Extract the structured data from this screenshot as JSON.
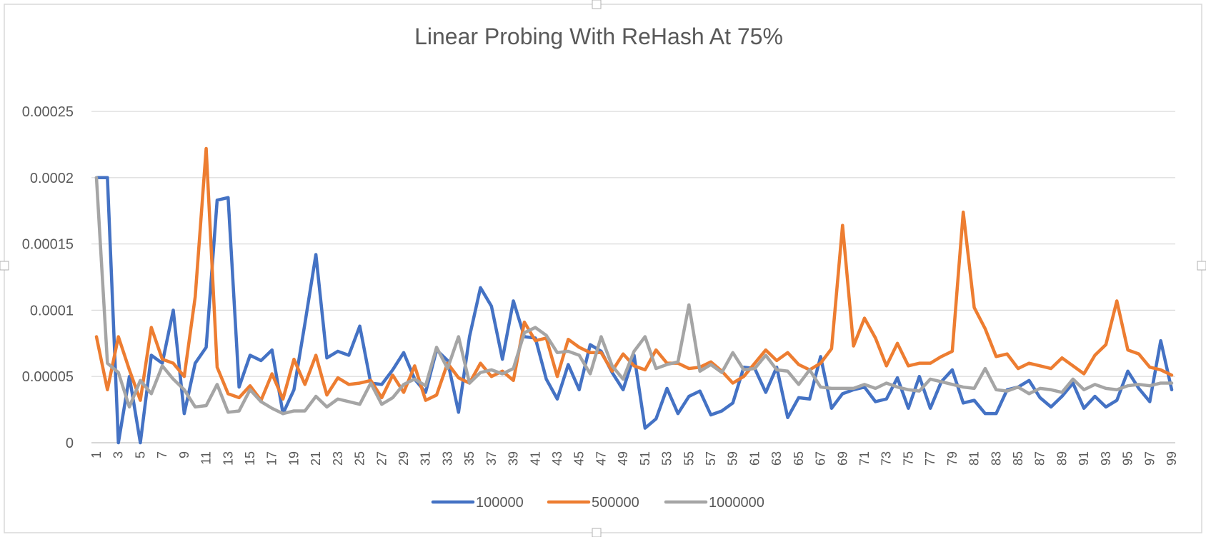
{
  "chart_data": {
    "type": "line",
    "title": "Linear Probing With ReHash At 75%",
    "xlabel": "",
    "ylabel": "",
    "x": [
      1,
      2,
      3,
      4,
      5,
      6,
      7,
      8,
      9,
      10,
      11,
      12,
      13,
      14,
      15,
      16,
      17,
      18,
      19,
      20,
      21,
      22,
      23,
      24,
      25,
      26,
      27,
      28,
      29,
      30,
      31,
      32,
      33,
      34,
      35,
      36,
      37,
      38,
      39,
      40,
      41,
      42,
      43,
      44,
      45,
      46,
      47,
      48,
      49,
      50,
      51,
      52,
      53,
      54,
      55,
      56,
      57,
      58,
      59,
      60,
      61,
      62,
      63,
      64,
      65,
      66,
      67,
      68,
      69,
      70,
      71,
      72,
      73,
      74,
      75,
      76,
      77,
      78,
      79,
      80,
      81,
      82,
      83,
      84,
      85,
      86,
      87,
      88,
      89,
      90,
      91,
      92,
      93,
      94,
      95,
      96,
      97,
      98,
      99
    ],
    "x_tick_labels": [
      "1",
      "3",
      "5",
      "7",
      "9",
      "11",
      "13",
      "15",
      "17",
      "19",
      "21",
      "23",
      "25",
      "27",
      "29",
      "31",
      "33",
      "35",
      "37",
      "39",
      "41",
      "43",
      "45",
      "47",
      "49",
      "51",
      "53",
      "55",
      "57",
      "59",
      "61",
      "63",
      "65",
      "67",
      "69",
      "71",
      "73",
      "75",
      "77",
      "79",
      "81",
      "83",
      "85",
      "87",
      "89",
      "91",
      "93",
      "95",
      "97",
      "99"
    ],
    "y_tick_labels": [
      "0",
      "0.00005",
      "0.0001",
      "0.00015",
      "0.0002",
      "0.00025"
    ],
    "ylim": [
      0,
      0.00025
    ],
    "grid": true,
    "legend_position": "bottom",
    "series": [
      {
        "name": "100000",
        "color": "#4472C4",
        "values": [
          0.0002,
          0.0002,
          0,
          5e-05,
          0,
          6.6e-05,
          6e-05,
          0.0001,
          2.2e-05,
          6e-05,
          7.2e-05,
          0.000183,
          0.000185,
          4.2e-05,
          6.6e-05,
          6.2e-05,
          7e-05,
          2.2e-05,
          4e-05,
          9e-05,
          0.000142,
          6.4e-05,
          6.9e-05,
          6.6e-05,
          8.8e-05,
          4.5e-05,
          4.4e-05,
          5.5e-05,
          6.8e-05,
          4.8e-05,
          3.8e-05,
          7e-05,
          6.2e-05,
          2.3e-05,
          8e-05,
          0.000117,
          0.000103,
          6.3e-05,
          0.000107,
          8e-05,
          7.9e-05,
          4.8e-05,
          3.3e-05,
          5.9e-05,
          4e-05,
          7.4e-05,
          6.9e-05,
          5.3e-05,
          4e-05,
          6.6e-05,
          1.1e-05,
          1.8e-05,
          4.1e-05,
          2.2e-05,
          3.5e-05,
          3.9e-05,
          2.1e-05,
          2.4e-05,
          3e-05,
          5.7e-05,
          5.6e-05,
          3.8e-05,
          5.7e-05,
          1.9e-05,
          3.4e-05,
          3.3e-05,
          6.5e-05,
          2.6e-05,
          3.7e-05,
          4e-05,
          4.2e-05,
          3.1e-05,
          3.3e-05,
          4.9e-05,
          2.6e-05,
          5e-05,
          2.6e-05,
          4.6e-05,
          5.5e-05,
          3e-05,
          3.2e-05,
          2.2e-05,
          2.2e-05,
          4e-05,
          4.2e-05,
          4.7e-05,
          3.4e-05,
          2.7e-05,
          3.5e-05,
          4.5e-05,
          2.6e-05,
          3.5e-05,
          2.7e-05,
          3.2e-05,
          5.4e-05,
          4.1e-05,
          3.1e-05,
          7.7e-05,
          4e-05
        ]
      },
      {
        "name": "500000",
        "color": "#ED7D31",
        "values": [
          8e-05,
          4e-05,
          8e-05,
          5.5e-05,
          3.2e-05,
          8.7e-05,
          6.3e-05,
          6e-05,
          5e-05,
          0.00011,
          0.000222,
          5.7e-05,
          3.7e-05,
          3.4e-05,
          4.3e-05,
          3.2e-05,
          5.2e-05,
          3.3e-05,
          6.3e-05,
          4.4e-05,
          6.6e-05,
          3.6e-05,
          4.9e-05,
          4.4e-05,
          4.5e-05,
          4.7e-05,
          3.4e-05,
          5.1e-05,
          3.8e-05,
          5.8e-05,
          3.2e-05,
          3.6e-05,
          6e-05,
          4.9e-05,
          4.5e-05,
          6e-05,
          5e-05,
          5.4e-05,
          4.7e-05,
          9.1e-05,
          7.7e-05,
          7.9e-05,
          5e-05,
          7.8e-05,
          7.2e-05,
          6.8e-05,
          6.8e-05,
          5.4e-05,
          6.7e-05,
          5.8e-05,
          5.5e-05,
          7e-05,
          6e-05,
          6e-05,
          5.6e-05,
          5.7e-05,
          6.1e-05,
          5.4e-05,
          4.5e-05,
          5e-05,
          6e-05,
          7e-05,
          6.2e-05,
          6.8e-05,
          5.9e-05,
          5.5e-05,
          6e-05,
          7.1e-05,
          0.000164,
          7.3e-05,
          9.4e-05,
          7.9e-05,
          5.8e-05,
          7.5e-05,
          5.8e-05,
          6e-05,
          6e-05,
          6.5e-05,
          6.9e-05,
          0.000174,
          0.000102,
          8.6e-05,
          6.5e-05,
          6.7e-05,
          5.6e-05,
          6e-05,
          5.8e-05,
          5.6e-05,
          6.4e-05,
          5.8e-05,
          5.2e-05,
          6.6e-05,
          7.4e-05,
          0.000107,
          7e-05,
          6.7e-05,
          5.7e-05,
          5.5e-05,
          5.1e-05
        ]
      },
      {
        "name": "1000000",
        "color": "#A5A5A5",
        "values": [
          0.0002,
          6e-05,
          5.3e-05,
          2.7e-05,
          4.7e-05,
          3.7e-05,
          5.8e-05,
          4.8e-05,
          4e-05,
          2.7e-05,
          2.8e-05,
          4.4e-05,
          2.3e-05,
          2.4e-05,
          4e-05,
          3.1e-05,
          2.6e-05,
          2.2e-05,
          2.4e-05,
          2.4e-05,
          3.5e-05,
          2.7e-05,
          3.3e-05,
          3.1e-05,
          2.9e-05,
          4.5e-05,
          2.9e-05,
          3.4e-05,
          4.4e-05,
          4.8e-05,
          4.3e-05,
          7.2e-05,
          5.6e-05,
          8e-05,
          4.5e-05,
          5.3e-05,
          5.5e-05,
          5.2e-05,
          5.6e-05,
          8.3e-05,
          8.7e-05,
          8.1e-05,
          6.8e-05,
          6.9e-05,
          6.6e-05,
          5.2e-05,
          8e-05,
          5.8e-05,
          4.8e-05,
          6.9e-05,
          8e-05,
          5.6e-05,
          5.9e-05,
          6.1e-05,
          0.000104,
          5.4e-05,
          5.9e-05,
          5.3e-05,
          6.8e-05,
          5.5e-05,
          5.6e-05,
          6.6e-05,
          5.5e-05,
          5.4e-05,
          4.4e-05,
          5.5e-05,
          4.2e-05,
          4.1e-05,
          4.1e-05,
          4.1e-05,
          4.4e-05,
          4.1e-05,
          4.5e-05,
          4.2e-05,
          4e-05,
          3.9e-05,
          4.8e-05,
          4.6e-05,
          4.4e-05,
          4.2e-05,
          4.1e-05,
          5.6e-05,
          4e-05,
          3.9e-05,
          4.2e-05,
          3.7e-05,
          4.1e-05,
          4e-05,
          3.8e-05,
          4.8e-05,
          4e-05,
          4.4e-05,
          4.1e-05,
          4e-05,
          4.3e-05,
          4.4e-05,
          4.3e-05,
          4.5e-05,
          4.5e-05
        ]
      }
    ]
  }
}
